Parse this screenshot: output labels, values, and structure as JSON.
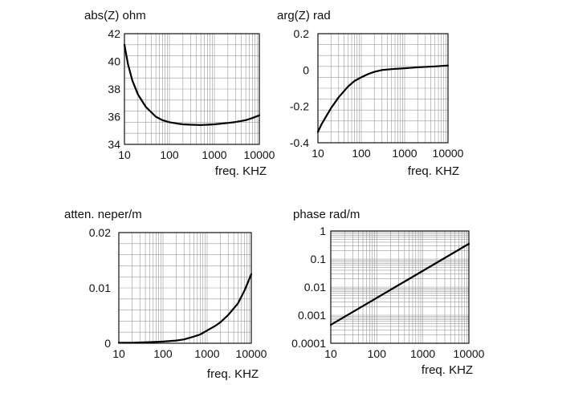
{
  "chart_data": [
    {
      "type": "line",
      "title": "abs(Z) ohm",
      "xlabel": "freq.  KHZ",
      "ylabel": "",
      "x_scale": "log",
      "y_scale": "linear",
      "xlim": [
        10,
        10000
      ],
      "ylim": [
        34,
        42
      ],
      "x_ticks": [
        "10",
        "100",
        "1000",
        "10000"
      ],
      "y_ticks": [
        "42",
        "40",
        "38",
        "36",
        "34"
      ],
      "y_tick_values": [
        42,
        40,
        38,
        36,
        34
      ],
      "grid": true,
      "series": [
        {
          "x": [
            10,
            12,
            15,
            20,
            30,
            50,
            70,
            100,
            150,
            200,
            300,
            500,
            700,
            1000,
            2000,
            3000,
            5000,
            7000,
            10000
          ],
          "values": [
            41.2,
            39.8,
            38.6,
            37.6,
            36.7,
            36.0,
            35.75,
            35.6,
            35.5,
            35.45,
            35.42,
            35.4,
            35.42,
            35.45,
            35.55,
            35.62,
            35.75,
            35.9,
            36.1
          ]
        }
      ]
    },
    {
      "type": "line",
      "title": "arg(Z)  rad",
      "xlabel": "freq.  KHZ",
      "ylabel": "",
      "x_scale": "log",
      "y_scale": "linear",
      "xlim": [
        10,
        10000
      ],
      "ylim": [
        -0.4,
        0.2
      ],
      "x_ticks": [
        "10",
        "100",
        "1000",
        "10000"
      ],
      "y_ticks": [
        "0.2",
        "0",
        "-0.2",
        "-0.4"
      ],
      "y_tick_values": [
        0.2,
        0,
        -0.2,
        -0.4
      ],
      "grid": true,
      "series": [
        {
          "x": [
            10,
            12,
            15,
            20,
            30,
            50,
            70,
            100,
            150,
            200,
            300,
            500,
            1000,
            2000,
            5000,
            10000
          ],
          "values": [
            -0.34,
            -0.3,
            -0.26,
            -0.21,
            -0.15,
            -0.09,
            -0.06,
            -0.04,
            -0.02,
            -0.01,
            0.0,
            0.005,
            0.01,
            0.015,
            0.02,
            0.025
          ]
        }
      ]
    },
    {
      "type": "line",
      "title": "atten.  neper/m",
      "xlabel": "freq.  KHZ",
      "ylabel": "",
      "x_scale": "log",
      "y_scale": "linear",
      "xlim": [
        10,
        10000
      ],
      "ylim": [
        0,
        0.02
      ],
      "x_ticks": [
        "10",
        "100",
        "1000",
        "10000"
      ],
      "y_ticks": [
        "0.02",
        "0.01",
        "0"
      ],
      "y_tick_values": [
        0.02,
        0.01,
        0
      ],
      "grid": true,
      "series": [
        {
          "x": [
            10,
            20,
            50,
            100,
            200,
            300,
            500,
            700,
            1000,
            1500,
            2000,
            3000,
            5000,
            7000,
            10000
          ],
          "values": [
            0.0001,
            0.0001,
            0.0002,
            0.0003,
            0.0005,
            0.0007,
            0.0012,
            0.0016,
            0.0023,
            0.0031,
            0.0038,
            0.0051,
            0.0072,
            0.0095,
            0.0125
          ]
        }
      ]
    },
    {
      "type": "line",
      "title": "phase rad/m",
      "xlabel": "freq.  KHZ",
      "ylabel": "",
      "x_scale": "log",
      "y_scale": "log",
      "xlim": [
        10,
        10000
      ],
      "ylim": [
        0.0001,
        1
      ],
      "x_ticks": [
        "10",
        "100",
        "1000",
        "10000"
      ],
      "y_ticks": [
        "1",
        "0.1",
        "0.01",
        "0.001",
        "0.0001"
      ],
      "y_tick_values": [
        1,
        0.1,
        0.01,
        0.001,
        0.0001
      ],
      "grid": true,
      "series": [
        {
          "x": [
            10,
            10000
          ],
          "values": [
            0.00045,
            0.35
          ]
        }
      ]
    }
  ]
}
